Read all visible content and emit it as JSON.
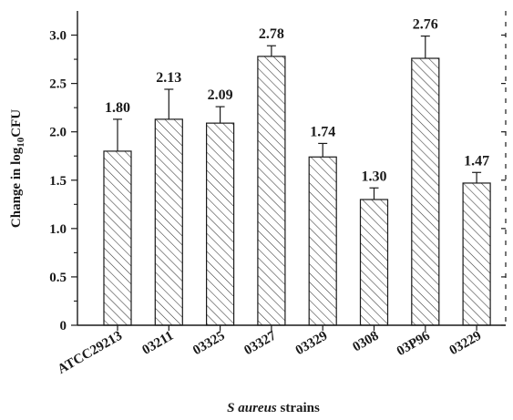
{
  "chart_data": {
    "type": "bar",
    "categories": [
      "ATCC29213",
      "03211",
      "03325",
      "03327",
      "03329",
      "0308",
      "03P96",
      "03229"
    ],
    "values": [
      1.8,
      2.13,
      2.09,
      2.78,
      1.74,
      1.3,
      2.76,
      1.47
    ],
    "value_labels": [
      "1.80",
      "2.13",
      "2.09",
      "2.78",
      "1.74",
      "1.30",
      "2.76",
      "1.47"
    ],
    "errors": [
      0.33,
      0.31,
      0.17,
      0.11,
      0.14,
      0.12,
      0.23,
      0.11
    ],
    "yticks": [
      "0",
      "0.5",
      "1.0",
      "1.5",
      "2.0",
      "2.5",
      "3.0"
    ],
    "ytick_values": [
      0,
      0.5,
      1.0,
      1.5,
      2.0,
      2.5,
      3.0
    ],
    "ylim": [
      0,
      3.25
    ],
    "ylabel": {
      "prefix": "Change in log",
      "subscript": "10",
      "suffix": "CFU"
    },
    "xlabel": {
      "italic": "S aureus",
      "rest": " strains"
    },
    "bar_fill": "hatched",
    "colors": {
      "axis": "#1a1a1a",
      "bar_stroke": "#1a1a1a",
      "hatch": "#333333",
      "background": "#ffffff"
    }
  }
}
